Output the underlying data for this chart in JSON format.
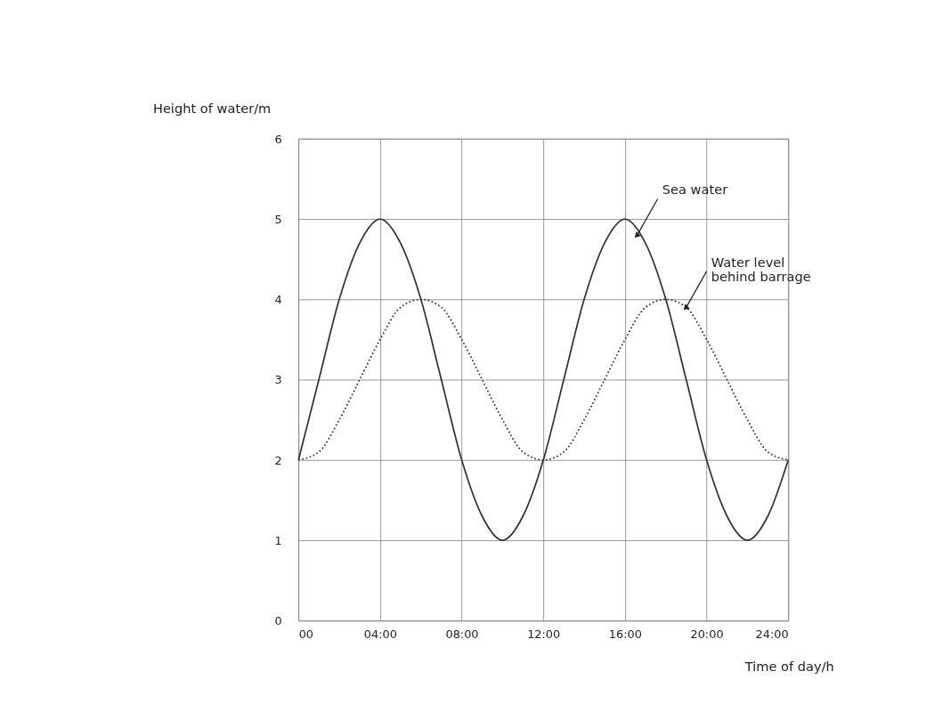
{
  "chart_data": {
    "type": "line",
    "xlabel": "Time of day/h",
    "ylabel": "Height of water/m",
    "x": [
      0,
      1,
      2,
      3,
      4,
      5,
      6,
      7,
      8,
      9,
      10,
      11,
      12,
      13,
      14,
      15,
      16,
      17,
      18,
      19,
      20,
      21,
      22,
      23,
      24
    ],
    "series": [
      {
        "color": "#333333",
        "line_style": "solid",
        "values": [
          2,
          3,
          4,
          4.7,
          5,
          4.7,
          4,
          3,
          2,
          1.3,
          1,
          1.3,
          2,
          3,
          4,
          4.7,
          5,
          4.7,
          4,
          3,
          2,
          1.3,
          1,
          1.3,
          2
        ]
      },
      {
        "color": "#333333",
        "line_style": "dotted",
        "values": [
          2,
          2.1,
          2.5,
          3,
          3.5,
          3.9,
          4,
          3.9,
          3.5,
          3,
          2.5,
          2.1,
          2,
          2.1,
          2.5,
          3,
          3.5,
          3.9,
          4,
          3.9,
          3.5,
          3,
          2.5,
          2.1,
          2
        ]
      }
    ],
    "xlim": [
      0,
      24
    ],
    "ylim": [
      0,
      6
    ],
    "xticks": [
      {
        "value": 0,
        "label": "00"
      },
      {
        "value": 4,
        "label": "04:00"
      },
      {
        "value": 8,
        "label": "08:00"
      },
      {
        "value": 12,
        "label": "12:00"
      },
      {
        "value": 16,
        "label": "16:00"
      },
      {
        "value": 20,
        "label": "20:00"
      },
      {
        "value": 24,
        "label": "24:00"
      }
    ],
    "yticks": [
      0,
      1,
      2,
      3,
      4,
      5,
      6
    ],
    "grid": true,
    "marker": "none",
    "annotations": [
      {
        "text": "Sea water",
        "x": 16.6,
        "y": 4.8
      },
      {
        "text": "Water level\nbehind barrage",
        "x": 19,
        "y": 3.9
      }
    ]
  }
}
